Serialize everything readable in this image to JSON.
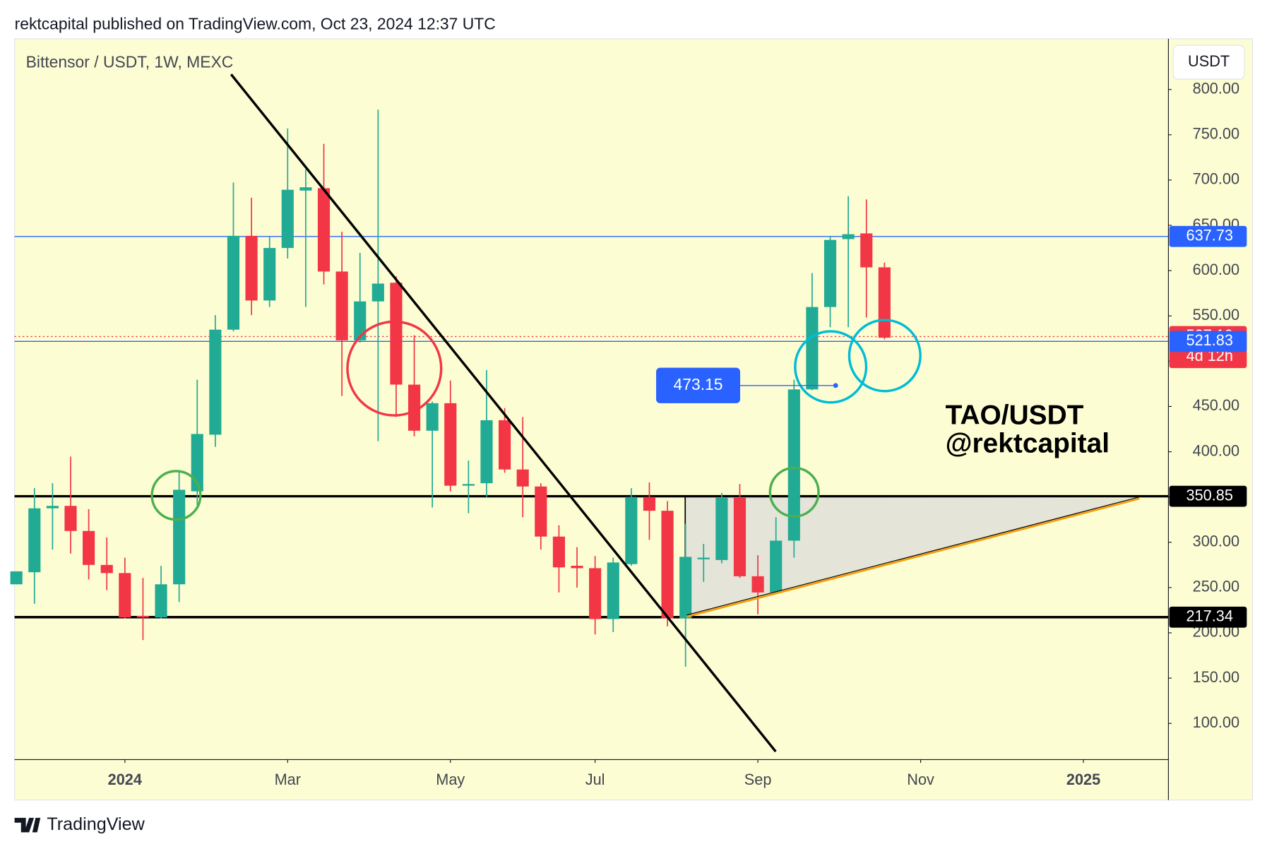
{
  "header": {
    "text": "rektcapital published on TradingView.com, Oct 23, 2024 12:37 UTC"
  },
  "chart_data": {
    "type": "candlestick",
    "title": "Bittensor / USDT, 1W, MEXC",
    "currency": "USDT",
    "open": [
      253.6,
      266.9,
      337.5,
      340.2,
      312.5,
      275,
      266,
      218.8,
      217,
      253.6,
      356.3,
      418.8,
      534.8,
      638.4,
      567,
      625,
      688.4,
      691,
      599,
      523,
      566,
      586.6,
      474.1,
      423.2,
      453.6,
      362.5,
      365.2,
      434.8,
      380.4,
      361.6,
      306.3,
      274.1,
      271.4,
      215.2,
      275.9,
      350,
      334.8,
      216.1,
      281.3,
      280.4,
      349.1,
      262.5,
      244.6,
      301.8,
      468.8,
      559.8,
      634.8,
      641.1,
      603.6
    ],
    "high": [
      267.9,
      359.8,
      365.2,
      394.6,
      336.6,
      305.4,
      283,
      260.7,
      274,
      378.6,
      479.5,
      550.9,
      697.3,
      680.4,
      637.5,
      757,
      711.6,
      740,
      642.9,
      619.6,
      777.7,
      593.8,
      528.6,
      455.4,
      478.6,
      390.2,
      490.2,
      448.2,
      438.4,
      365.2,
      318.8,
      294.6,
      284.8,
      283,
      359.8,
      366.1,
      345.5,
      320.5,
      298.2,
      354.5,
      364.3,
      285.7,
      327.7,
      479.5,
      597.3,
      637.5,
      682.1,
      678.6,
      608.9
    ],
    "low": [
      253.6,
      232.1,
      291.9,
      287.5,
      258.9,
      247.3,
      216,
      192,
      216,
      234,
      341,
      405.4,
      533,
      550.9,
      559.8,
      613.4,
      559.8,
      584.8,
      461.6,
      520.5,
      411.6,
      438.4,
      417,
      338.4,
      356.3,
      332.1,
      350,
      376.8,
      327.7,
      291.9,
      244.6,
      250,
      198.2,
      200.9,
      274.1,
      302.7,
      207.1,
      162.5,
      256.3,
      276.8,
      260.7,
      220.5,
      242.9,
      283,
      467.9,
      537.5,
      537.5,
      548.2,
      524.1
    ],
    "close": [
      267.9,
      337.5,
      340.2,
      312.5,
      275,
      266,
      217,
      217,
      253.6,
      358,
      419.6,
      534.8,
      638.4,
      567,
      625,
      689.3,
      692,
      599,
      523,
      566,
      585.7,
      474.1,
      423.2,
      453.6,
      362.5,
      364.3,
      434.8,
      380.4,
      361.6,
      306.3,
      272.3,
      271.4,
      215.2,
      277.7,
      350,
      334.8,
      216.1,
      283.9,
      283,
      349.1,
      262.5,
      244.6,
      301.8,
      468.8,
      559.8,
      633.9,
      640.2,
      603.6,
      525.9
    ],
    "up_color": "#22ab94",
    "down_color": "#f23645",
    "xlim": [
      -0.1,
      63.7
    ],
    "xticks": [
      {
        "value": 6,
        "label": "2024",
        "bold": true
      },
      {
        "value": 15,
        "label": "Mar"
      },
      {
        "value": 24,
        "label": "May"
      },
      {
        "value": 32,
        "label": "Jul"
      },
      {
        "value": 41,
        "label": "Sep"
      },
      {
        "value": 50,
        "label": "Nov"
      },
      {
        "value": 59,
        "label": "2025",
        "bold": true
      }
    ],
    "ylim": [
      60,
      856
    ],
    "yticks": [
      {
        "value": 100,
        "label": "100.00"
      },
      {
        "value": 150,
        "label": "150.00"
      },
      {
        "value": 200,
        "label": "200.00"
      },
      {
        "value": 250,
        "label": "250.00"
      },
      {
        "value": 300,
        "label": "300.00"
      },
      {
        "value": 350,
        "label": "350.00"
      },
      {
        "value": 400,
        "label": "400.00"
      },
      {
        "value": 450,
        "label": "450.00"
      },
      {
        "value": 500,
        "label": "500.00"
      },
      {
        "value": 550,
        "label": "550.00"
      },
      {
        "value": 600,
        "label": "600.00"
      },
      {
        "value": 650,
        "label": "650.00"
      },
      {
        "value": 700,
        "label": "700.00"
      },
      {
        "value": 750,
        "label": "750.00"
      },
      {
        "value": 800,
        "label": "800.00"
      }
    ],
    "levels": [
      {
        "value": 637.73,
        "color": "#2962ff",
        "style": "solid"
      },
      {
        "value": 527.19,
        "color": "#f23645",
        "style": "dotted",
        "countdown": "4d 12h"
      },
      {
        "value": 521.83,
        "color": "#2962ff",
        "style": "solid"
      },
      {
        "value": 350.85,
        "color": "#000000",
        "style": "thick"
      },
      {
        "value": 217.34,
        "color": "#000000",
        "style": "thick"
      }
    ],
    "price_note": 473.15,
    "annotations": [
      "TAO/USDT",
      "@rektcapital"
    ]
  },
  "footer": {
    "brand": "TradingView"
  }
}
